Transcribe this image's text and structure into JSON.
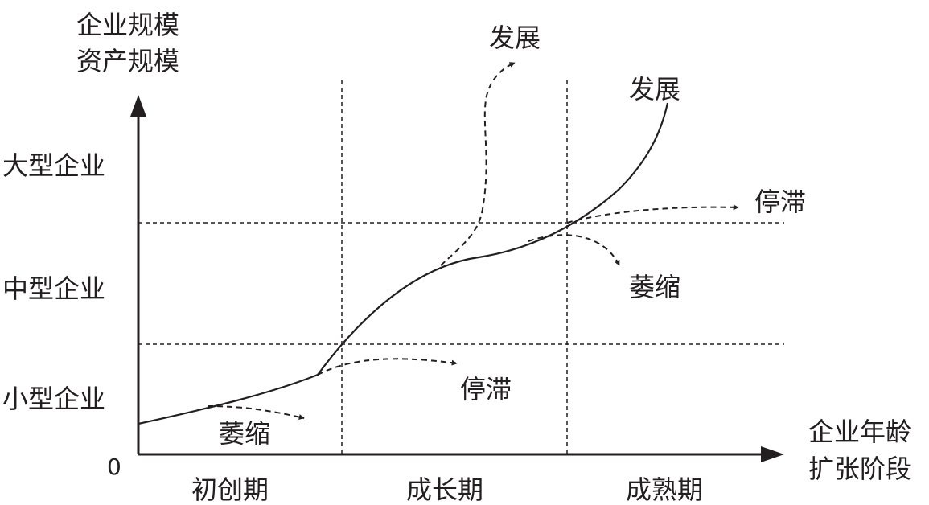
{
  "y_axis": {
    "title_line1": "企业规模",
    "title_line2": "资产规模",
    "levels": [
      "大型企业",
      "中型企业",
      "小型企业"
    ],
    "origin": "0"
  },
  "x_axis": {
    "title_line1": "企业年龄",
    "title_line2": "扩张阶段",
    "stages": [
      "初创期",
      "成长期",
      "成熟期"
    ]
  },
  "curve_labels": {
    "develop_top": "发展",
    "develop_main": "发展",
    "stagnate_right": "停滞",
    "wither_right": "萎缩",
    "stagnate_mid": "停滞",
    "wither_left": "萎缩"
  },
  "colors": {
    "ink": "#231f20",
    "background": "#ffffff"
  }
}
